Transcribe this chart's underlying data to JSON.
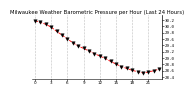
{
  "title": "Milwaukee Weather Barometric Pressure per Hour (Last 24 Hours)",
  "x_values": [
    0,
    1,
    2,
    3,
    4,
    5,
    6,
    7,
    8,
    9,
    10,
    11,
    12,
    13,
    14,
    15,
    16,
    17,
    18,
    19,
    20,
    21,
    22,
    23
  ],
  "y_values": [
    30.18,
    30.12,
    30.06,
    29.97,
    29.84,
    29.72,
    29.6,
    29.48,
    29.38,
    29.3,
    29.22,
    29.14,
    29.06,
    28.99,
    28.89,
    28.81,
    28.73,
    28.67,
    28.61,
    28.57,
    28.53,
    28.56,
    28.6,
    28.65
  ],
  "ylim": [
    28.35,
    30.35
  ],
  "ytick_values": [
    28.4,
    28.6,
    28.8,
    29.0,
    29.2,
    29.4,
    29.6,
    29.8,
    30.0,
    30.2
  ],
  "ytick_labels": [
    "28.4",
    "28.6",
    "28.8",
    "29.0",
    "29.2",
    "29.4",
    "29.6",
    "29.8",
    "30.0",
    "30.2"
  ],
  "xtick_positions": [
    0,
    3,
    6,
    9,
    12,
    15,
    18,
    21
  ],
  "xtick_labels": [
    "0",
    "3",
    "6",
    "9",
    "12",
    "15",
    "18",
    "21"
  ],
  "line_color": "#ff0000",
  "marker_color": "#000000",
  "bg_color": "#ffffff",
  "grid_color": "#888888",
  "title_fontsize": 3.8,
  "tick_fontsize": 3.0
}
